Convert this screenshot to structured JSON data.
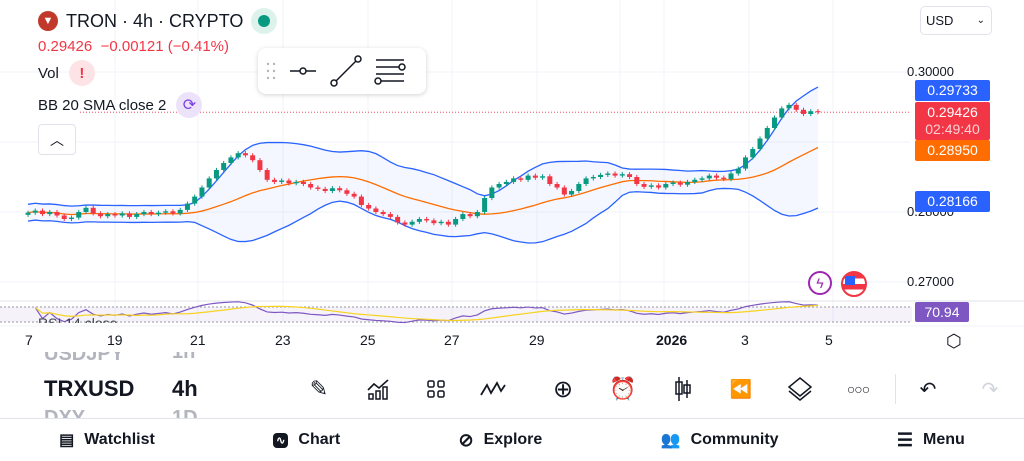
{
  "header": {
    "symbol_title": "TRON · 4h · CRYPTO",
    "price": "0.29426",
    "change": "−0.00121 (−0.41%)",
    "vol_label": "Vol",
    "bb_label": "BB 20 SMA close 2",
    "rsi_label": "RSI 14 close",
    "currency": "USD"
  },
  "price_axis": {
    "ticks": [
      "0.30000",
      "0.28000",
      "0.27000"
    ],
    "upper_band": "0.29733",
    "last_price": "0.29426",
    "countdown": "02:49:40",
    "basis": "0.28950",
    "lower_band": "0.28166",
    "rsi_value": "70.94"
  },
  "date_axis": [
    "7",
    "19",
    "21",
    "23",
    "25",
    "27",
    "29",
    "2026",
    "3",
    "5"
  ],
  "watchlist": {
    "prev_symbol": "USDJPY",
    "prev_interval": "1h",
    "symbol": "TRXUSD",
    "interval": "4h",
    "next_symbol": "DXY",
    "next_interval": "1D"
  },
  "nav": [
    {
      "label": "Watchlist",
      "icon": "watchlist-icon"
    },
    {
      "label": "Chart",
      "icon": "chart-icon"
    },
    {
      "label": "Explore",
      "icon": "compass-icon"
    },
    {
      "label": "Community",
      "icon": "community-icon"
    },
    {
      "label": "Menu",
      "icon": "menu-icon"
    }
  ],
  "colors": {
    "up": "#089981",
    "down": "#f23645",
    "band": "#2962ff",
    "basis": "#ff6d00",
    "rsi": "#7e57c2"
  },
  "chart_data": {
    "type": "candlestick",
    "closes": [
      0.2799,
      0.2802,
      0.2797,
      0.28,
      0.2795,
      0.279,
      0.2792,
      0.28,
      0.2806,
      0.2798,
      0.2794,
      0.2797,
      0.2795,
      0.2798,
      0.2793,
      0.2797,
      0.28,
      0.2797,
      0.2799,
      0.2801,
      0.2798,
      0.2803,
      0.2812,
      0.2822,
      0.2835,
      0.2848,
      0.286,
      0.287,
      0.2878,
      0.2884,
      0.2881,
      0.2874,
      0.286,
      0.2846,
      0.2843,
      0.2845,
      0.2841,
      0.2843,
      0.284,
      0.2835,
      0.2833,
      0.283,
      0.2834,
      0.2831,
      0.2826,
      0.2822,
      0.281,
      0.2805,
      0.28,
      0.2797,
      0.2793,
      0.2785,
      0.2782,
      0.2786,
      0.279,
      0.2788,
      0.2784,
      0.2786,
      0.2782,
      0.279,
      0.2797,
      0.2794,
      0.28,
      0.282,
      0.2835,
      0.284,
      0.2843,
      0.2848,
      0.2846,
      0.2852,
      0.2849,
      0.2851,
      0.284,
      0.2835,
      0.2825,
      0.283,
      0.284,
      0.2848,
      0.285,
      0.2853,
      0.2855,
      0.2852,
      0.2854,
      0.285,
      0.284,
      0.2836,
      0.2838,
      0.2835,
      0.284,
      0.2842,
      0.2839,
      0.2843,
      0.2846,
      0.2848,
      0.2852,
      0.2849,
      0.2847,
      0.2855,
      0.2862,
      0.2878,
      0.289,
      0.2905,
      0.292,
      0.2935,
      0.2948,
      0.2953,
      0.2946,
      0.294,
      0.2944,
      0.29426
    ],
    "ylim": [
      0.2665,
      0.303
    ]
  }
}
